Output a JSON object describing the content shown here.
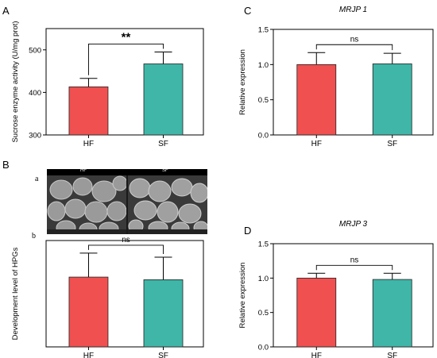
{
  "panels": {
    "A": {
      "letter": "A"
    },
    "B": {
      "letter": "B",
      "sub_a": "a",
      "sub_b": "b"
    },
    "C": {
      "letter": "C"
    },
    "D": {
      "letter": "D"
    }
  },
  "micrograph": {
    "left_label": "HF",
    "right_label": "SF"
  },
  "colors": {
    "HF": "#f05050",
    "SF": "#3fb6a8"
  },
  "chart_data": [
    {
      "id": "A",
      "type": "bar",
      "title": "",
      "ylabel": "Sucrose enzyme activity (U/mg prot)",
      "categories": [
        "HF",
        "SF"
      ],
      "values": [
        413,
        467
      ],
      "errors": [
        20,
        28
      ],
      "ylim": [
        300,
        550
      ],
      "yticks": [
        300,
        400,
        500
      ],
      "significance": "**"
    },
    {
      "id": "C",
      "type": "bar",
      "title": "MRJP 1",
      "ylabel": "Relative expression",
      "categories": [
        "HF",
        "SF"
      ],
      "values": [
        1.0,
        1.01
      ],
      "errors": [
        0.17,
        0.15
      ],
      "ylim": [
        0,
        1.5
      ],
      "yticks": [
        0.0,
        0.5,
        1.0,
        1.5
      ],
      "significance": "ns"
    },
    {
      "id": "Bb",
      "type": "bar",
      "title": "",
      "ylabel": "Development level of HPGs",
      "categories": [
        "HF",
        "SF"
      ],
      "values": [
        2.1,
        2.02
      ],
      "errors": [
        0.72,
        0.68
      ],
      "ylim": [
        0,
        3.2
      ],
      "yticks": [],
      "significance": "ns"
    },
    {
      "id": "D",
      "type": "bar",
      "title": "MRJP 3",
      "ylabel": "Relative expression",
      "categories": [
        "HF",
        "SF"
      ],
      "values": [
        1.0,
        0.98
      ],
      "errors": [
        0.07,
        0.09
      ],
      "ylim": [
        0,
        1.5
      ],
      "yticks": [
        0.0,
        0.5,
        1.0,
        1.5
      ],
      "significance": "ns"
    }
  ]
}
